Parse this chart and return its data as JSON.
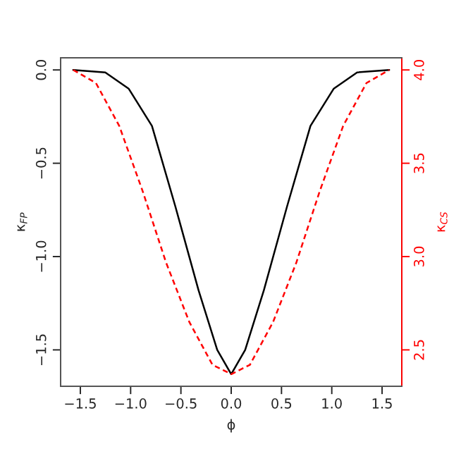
{
  "chart_data": {
    "type": "line",
    "xlabel": "ϕ",
    "ylabel": "κ$_{FP}$",
    "y2label": "κ$_{CS}$",
    "x": [
      -1.571,
      -1.252,
      -1.02,
      -0.788,
      -0.556,
      -0.325,
      -0.139,
      0,
      0.139,
      0.325,
      0.556,
      0.788,
      1.02,
      1.252,
      1.571
    ],
    "series": [
      {
        "color": "#000000",
        "line_style": "solid",
        "values": [
          0,
          -0.013,
          -0.1,
          -0.3,
          -0.73,
          -1.18,
          -1.5,
          -1.63,
          -1.5,
          -1.18,
          -0.73,
          -0.3,
          -0.1,
          -0.013,
          0
        ]
      },
      {
        "color": "#ff0000",
        "line_style": "dashed",
        "axis": "y2",
        "x": [
          -1.571,
          -1.345,
          -1.113,
          -0.88,
          -0.649,
          -0.417,
          -0.186,
          0,
          0.186,
          0.417,
          0.649,
          0.88,
          1.113,
          1.345,
          1.571
        ],
        "values": [
          4.0,
          3.93,
          3.7,
          3.35,
          2.97,
          2.65,
          2.42,
          2.37,
          2.42,
          2.65,
          2.97,
          3.35,
          3.7,
          3.93,
          4.0
        ]
      }
    ],
    "xlim": [
      -1.696,
      1.696
    ],
    "xticks": [
      {
        "value": -1.5,
        "label": "−1.5"
      },
      {
        "value": -1.0,
        "label": "−1.0"
      },
      {
        "value": -0.5,
        "label": "−0.5"
      },
      {
        "value": 0,
        "label": "0.0"
      },
      {
        "value": 0.5,
        "label": "0.5"
      },
      {
        "value": 1.0,
        "label": "1.0"
      },
      {
        "value": 1.5,
        "label": "1.5"
      }
    ],
    "ylim": [
      -1.695,
      0.065
    ],
    "yticks": [
      {
        "value": -1.5,
        "label": "−1.5"
      },
      {
        "value": -1.0,
        "label": "−1.0"
      },
      {
        "value": -0.5,
        "label": "−0.5"
      },
      {
        "value": 0,
        "label": "0.0"
      }
    ],
    "y2lim": [
      2.305,
      4.065
    ],
    "y2ticks": [
      {
        "value": 2.5,
        "label": "2.5"
      },
      {
        "value": 3.0,
        "label": "3.0"
      },
      {
        "value": 3.5,
        "label": "3.5"
      },
      {
        "value": 4.0,
        "label": "4.0"
      }
    ],
    "grid": false,
    "legend": false
  }
}
